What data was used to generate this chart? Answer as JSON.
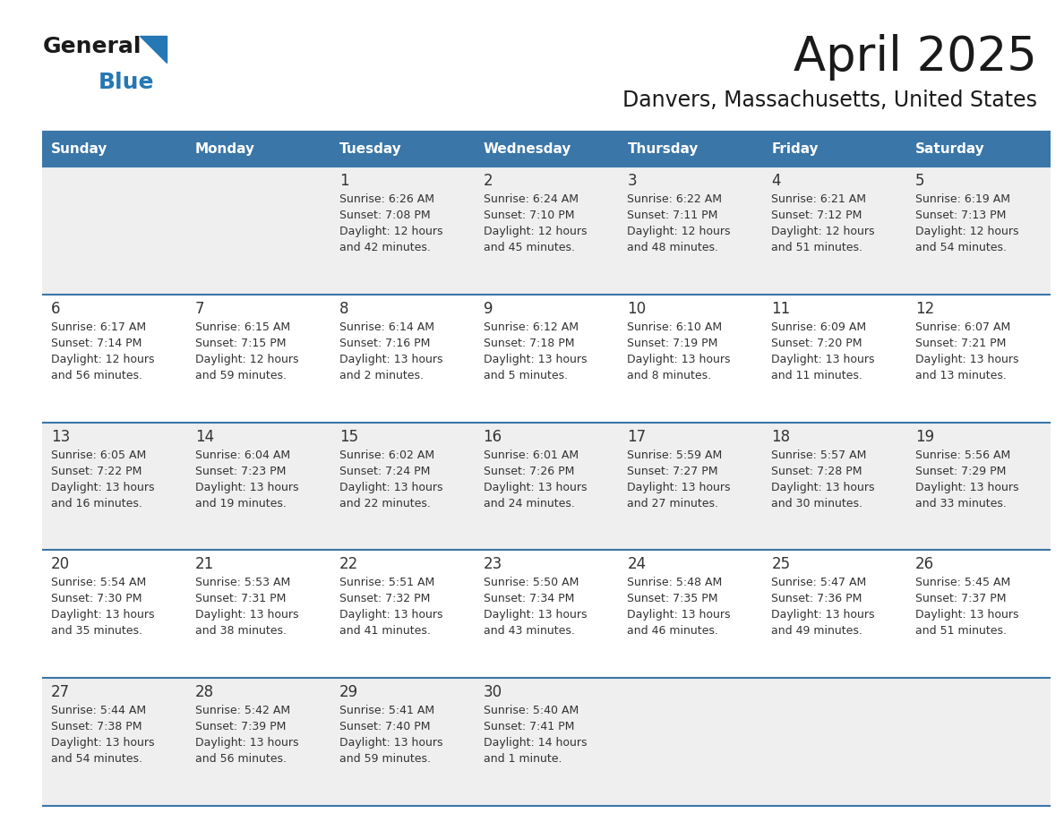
{
  "title": "April 2025",
  "subtitle": "Danvers, Massachusetts, United States",
  "days_of_week": [
    "Sunday",
    "Monday",
    "Tuesday",
    "Wednesday",
    "Thursday",
    "Friday",
    "Saturday"
  ],
  "header_bg": "#3A76A8",
  "header_text": "#FFFFFF",
  "cell_bg_odd": "#EFEFEF",
  "cell_bg_even": "#FFFFFF",
  "border_color": "#3A76A8",
  "text_color": "#333333",
  "day_number_color": "#333333",
  "title_color": "#1a1a1a",
  "subtitle_color": "#1a1a1a",
  "logo_general_color": "#1a1a1a",
  "logo_blue_color": "#2677B5",
  "logo_triangle_color": "#2677B5",
  "calendar_data": [
    [
      {
        "day": null,
        "sunrise": null,
        "sunset": null,
        "daylight": null
      },
      {
        "day": null,
        "sunrise": null,
        "sunset": null,
        "daylight": null
      },
      {
        "day": 1,
        "sunrise": "6:26 AM",
        "sunset": "7:08 PM",
        "daylight": "12 hours\nand 42 minutes."
      },
      {
        "day": 2,
        "sunrise": "6:24 AM",
        "sunset": "7:10 PM",
        "daylight": "12 hours\nand 45 minutes."
      },
      {
        "day": 3,
        "sunrise": "6:22 AM",
        "sunset": "7:11 PM",
        "daylight": "12 hours\nand 48 minutes."
      },
      {
        "day": 4,
        "sunrise": "6:21 AM",
        "sunset": "7:12 PM",
        "daylight": "12 hours\nand 51 minutes."
      },
      {
        "day": 5,
        "sunrise": "6:19 AM",
        "sunset": "7:13 PM",
        "daylight": "12 hours\nand 54 minutes."
      }
    ],
    [
      {
        "day": 6,
        "sunrise": "6:17 AM",
        "sunset": "7:14 PM",
        "daylight": "12 hours\nand 56 minutes."
      },
      {
        "day": 7,
        "sunrise": "6:15 AM",
        "sunset": "7:15 PM",
        "daylight": "12 hours\nand 59 minutes."
      },
      {
        "day": 8,
        "sunrise": "6:14 AM",
        "sunset": "7:16 PM",
        "daylight": "13 hours\nand 2 minutes."
      },
      {
        "day": 9,
        "sunrise": "6:12 AM",
        "sunset": "7:18 PM",
        "daylight": "13 hours\nand 5 minutes."
      },
      {
        "day": 10,
        "sunrise": "6:10 AM",
        "sunset": "7:19 PM",
        "daylight": "13 hours\nand 8 minutes."
      },
      {
        "day": 11,
        "sunrise": "6:09 AM",
        "sunset": "7:20 PM",
        "daylight": "13 hours\nand 11 minutes."
      },
      {
        "day": 12,
        "sunrise": "6:07 AM",
        "sunset": "7:21 PM",
        "daylight": "13 hours\nand 13 minutes."
      }
    ],
    [
      {
        "day": 13,
        "sunrise": "6:05 AM",
        "sunset": "7:22 PM",
        "daylight": "13 hours\nand 16 minutes."
      },
      {
        "day": 14,
        "sunrise": "6:04 AM",
        "sunset": "7:23 PM",
        "daylight": "13 hours\nand 19 minutes."
      },
      {
        "day": 15,
        "sunrise": "6:02 AM",
        "sunset": "7:24 PM",
        "daylight": "13 hours\nand 22 minutes."
      },
      {
        "day": 16,
        "sunrise": "6:01 AM",
        "sunset": "7:26 PM",
        "daylight": "13 hours\nand 24 minutes."
      },
      {
        "day": 17,
        "sunrise": "5:59 AM",
        "sunset": "7:27 PM",
        "daylight": "13 hours\nand 27 minutes."
      },
      {
        "day": 18,
        "sunrise": "5:57 AM",
        "sunset": "7:28 PM",
        "daylight": "13 hours\nand 30 minutes."
      },
      {
        "day": 19,
        "sunrise": "5:56 AM",
        "sunset": "7:29 PM",
        "daylight": "13 hours\nand 33 minutes."
      }
    ],
    [
      {
        "day": 20,
        "sunrise": "5:54 AM",
        "sunset": "7:30 PM",
        "daylight": "13 hours\nand 35 minutes."
      },
      {
        "day": 21,
        "sunrise": "5:53 AM",
        "sunset": "7:31 PM",
        "daylight": "13 hours\nand 38 minutes."
      },
      {
        "day": 22,
        "sunrise": "5:51 AM",
        "sunset": "7:32 PM",
        "daylight": "13 hours\nand 41 minutes."
      },
      {
        "day": 23,
        "sunrise": "5:50 AM",
        "sunset": "7:34 PM",
        "daylight": "13 hours\nand 43 minutes."
      },
      {
        "day": 24,
        "sunrise": "5:48 AM",
        "sunset": "7:35 PM",
        "daylight": "13 hours\nand 46 minutes."
      },
      {
        "day": 25,
        "sunrise": "5:47 AM",
        "sunset": "7:36 PM",
        "daylight": "13 hours\nand 49 minutes."
      },
      {
        "day": 26,
        "sunrise": "5:45 AM",
        "sunset": "7:37 PM",
        "daylight": "13 hours\nand 51 minutes."
      }
    ],
    [
      {
        "day": 27,
        "sunrise": "5:44 AM",
        "sunset": "7:38 PM",
        "daylight": "13 hours\nand 54 minutes."
      },
      {
        "day": 28,
        "sunrise": "5:42 AM",
        "sunset": "7:39 PM",
        "daylight": "13 hours\nand 56 minutes."
      },
      {
        "day": 29,
        "sunrise": "5:41 AM",
        "sunset": "7:40 PM",
        "daylight": "13 hours\nand 59 minutes."
      },
      {
        "day": 30,
        "sunrise": "5:40 AM",
        "sunset": "7:41 PM",
        "daylight": "14 hours\nand 1 minute."
      },
      {
        "day": null,
        "sunrise": null,
        "sunset": null,
        "daylight": null
      },
      {
        "day": null,
        "sunrise": null,
        "sunset": null,
        "daylight": null
      },
      {
        "day": null,
        "sunrise": null,
        "sunset": null,
        "daylight": null
      }
    ]
  ]
}
